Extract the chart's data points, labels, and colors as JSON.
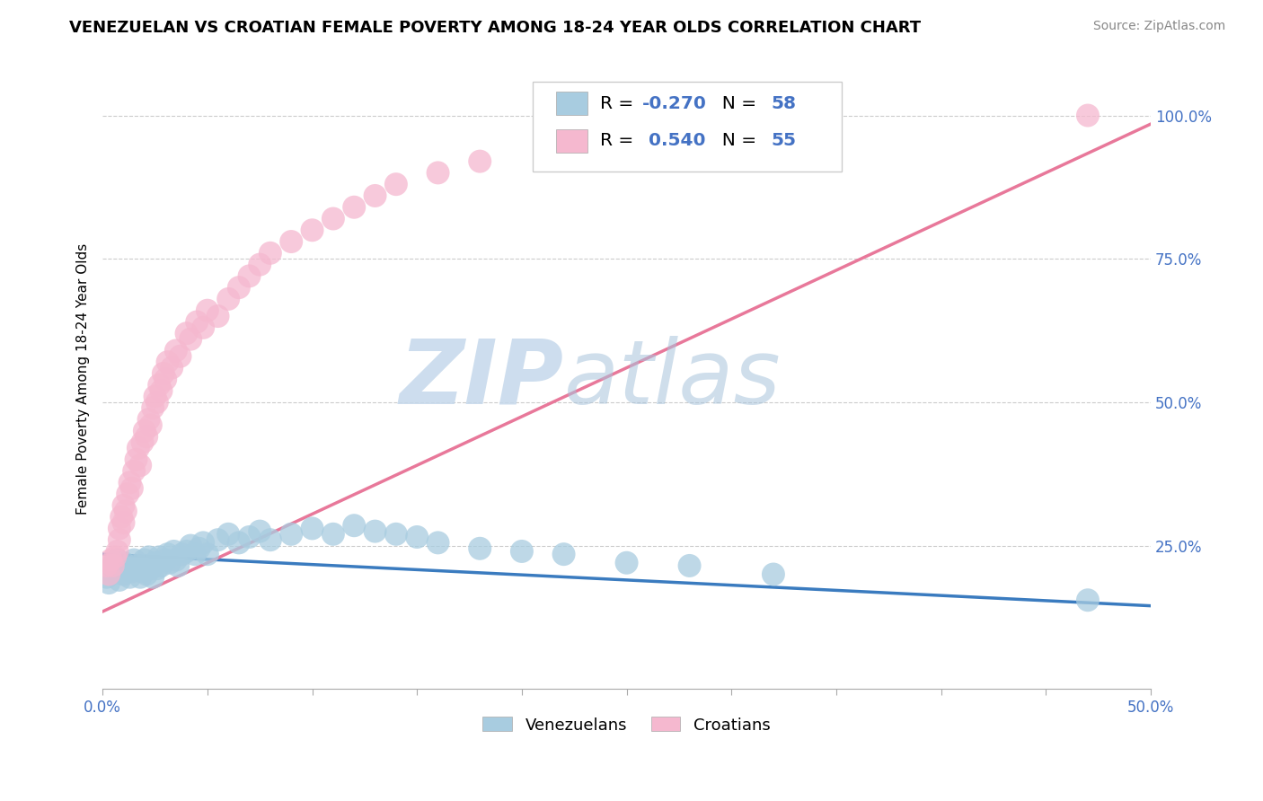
{
  "title": "VENEZUELAN VS CROATIAN FEMALE POVERTY AMONG 18-24 YEAR OLDS CORRELATION CHART",
  "source": "Source: ZipAtlas.com",
  "ylabel": "Female Poverty Among 18-24 Year Olds",
  "xlim": [
    0.0,
    0.5
  ],
  "ylim": [
    0.0,
    1.08
  ],
  "background_color": "#ffffff",
  "grid_color": "#cccccc",
  "venezuelan_color": "#a8cce0",
  "croatian_color": "#f5b8cf",
  "venezuelan_line_color": "#3a7bbf",
  "croatian_line_color": "#e8789a",
  "R_venezuelan": -0.27,
  "N_venezuelan": 58,
  "R_croatian": 0.54,
  "N_croatian": 55,
  "watermark_zip": "ZIP",
  "watermark_atlas": "atlas",
  "venezuelan_x": [
    0.002,
    0.003,
    0.005,
    0.007,
    0.008,
    0.01,
    0.01,
    0.012,
    0.013,
    0.014,
    0.015,
    0.016,
    0.018,
    0.019,
    0.02,
    0.02,
    0.021,
    0.022,
    0.023,
    0.024,
    0.025,
    0.026,
    0.027,
    0.028,
    0.03,
    0.031,
    0.032,
    0.034,
    0.035,
    0.036,
    0.038,
    0.04,
    0.042,
    0.044,
    0.046,
    0.048,
    0.05,
    0.055,
    0.06,
    0.065,
    0.07,
    0.075,
    0.08,
    0.09,
    0.1,
    0.11,
    0.12,
    0.13,
    0.14,
    0.15,
    0.16,
    0.18,
    0.2,
    0.22,
    0.25,
    0.28,
    0.32,
    0.47
  ],
  "venezuelan_y": [
    0.195,
    0.185,
    0.215,
    0.225,
    0.19,
    0.2,
    0.22,
    0.21,
    0.195,
    0.205,
    0.225,
    0.215,
    0.195,
    0.205,
    0.225,
    0.215,
    0.2,
    0.23,
    0.21,
    0.195,
    0.22,
    0.21,
    0.23,
    0.215,
    0.225,
    0.235,
    0.22,
    0.24,
    0.225,
    0.215,
    0.235,
    0.24,
    0.25,
    0.235,
    0.245,
    0.255,
    0.235,
    0.26,
    0.27,
    0.255,
    0.265,
    0.275,
    0.26,
    0.27,
    0.28,
    0.27,
    0.285,
    0.275,
    0.27,
    0.265,
    0.255,
    0.245,
    0.24,
    0.235,
    0.22,
    0.215,
    0.2,
    0.155
  ],
  "croatian_x": [
    0.002,
    0.003,
    0.004,
    0.005,
    0.006,
    0.007,
    0.008,
    0.008,
    0.009,
    0.01,
    0.01,
    0.011,
    0.012,
    0.013,
    0.014,
    0.015,
    0.016,
    0.017,
    0.018,
    0.019,
    0.02,
    0.021,
    0.022,
    0.023,
    0.024,
    0.025,
    0.026,
    0.027,
    0.028,
    0.029,
    0.03,
    0.031,
    0.033,
    0.035,
    0.037,
    0.04,
    0.042,
    0.045,
    0.048,
    0.05,
    0.055,
    0.06,
    0.065,
    0.07,
    0.075,
    0.08,
    0.09,
    0.1,
    0.11,
    0.12,
    0.13,
    0.14,
    0.16,
    0.18,
    0.47
  ],
  "croatian_y": [
    0.215,
    0.2,
    0.225,
    0.215,
    0.23,
    0.24,
    0.26,
    0.28,
    0.3,
    0.29,
    0.32,
    0.31,
    0.34,
    0.36,
    0.35,
    0.38,
    0.4,
    0.42,
    0.39,
    0.43,
    0.45,
    0.44,
    0.47,
    0.46,
    0.49,
    0.51,
    0.5,
    0.53,
    0.52,
    0.55,
    0.54,
    0.57,
    0.56,
    0.59,
    0.58,
    0.62,
    0.61,
    0.64,
    0.63,
    0.66,
    0.65,
    0.68,
    0.7,
    0.72,
    0.74,
    0.76,
    0.78,
    0.8,
    0.82,
    0.84,
    0.86,
    0.88,
    0.9,
    0.92,
    1.0
  ],
  "ven_trend_x": [
    0.0,
    0.5
  ],
  "ven_trend_y": [
    0.235,
    0.145
  ],
  "cro_trend_x": [
    0.0,
    0.5
  ],
  "cro_trend_y": [
    0.135,
    0.985
  ]
}
